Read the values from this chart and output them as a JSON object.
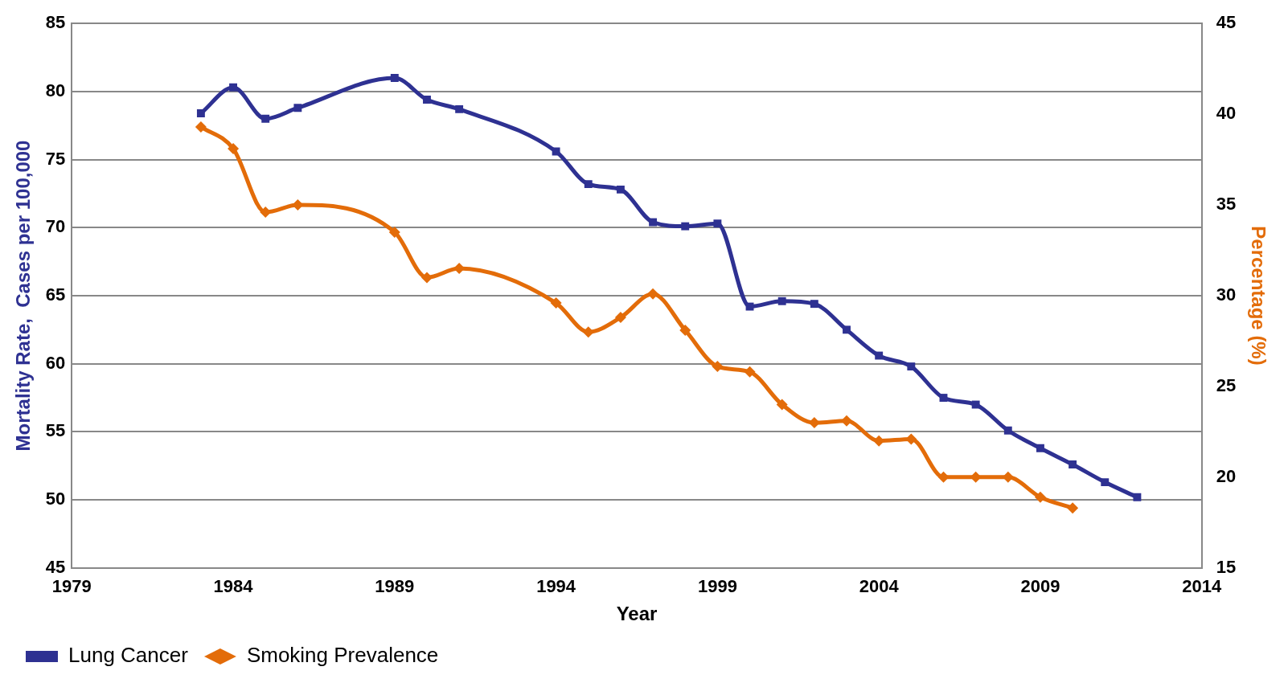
{
  "chart_data": {
    "type": "line",
    "xlabel": "Year",
    "ylabel": "Mortality Rate,  Cases per 100,000",
    "y2label": "Percentage (%)",
    "xlim": [
      1979,
      2014
    ],
    "xticks": [
      1979,
      1984,
      1989,
      1994,
      1999,
      2004,
      2009,
      2014
    ],
    "ylim": [
      45,
      85
    ],
    "yticks": [
      45,
      50,
      55,
      60,
      65,
      70,
      75,
      80,
      85
    ],
    "y2lim": [
      15,
      45
    ],
    "y2ticks": [
      15,
      20,
      25,
      30,
      35,
      40,
      45
    ],
    "grid": "y",
    "legend": "bottom left",
    "series": [
      {
        "name": "Lung Cancer",
        "color": "#2e3192",
        "marker": "square",
        "x": [
          1983,
          1984,
          1985,
          1986,
          1989,
          1990,
          1991,
          1994,
          1995,
          1996,
          1997,
          1998,
          1999,
          2000,
          2001,
          2002,
          2003,
          2004,
          2005,
          2006,
          2007,
          2008,
          2009,
          2010,
          2011,
          2012
        ],
        "values": [
          78.4,
          80.3,
          78.0,
          78.8,
          81.0,
          79.4,
          78.7,
          75.6,
          73.2,
          72.8,
          70.4,
          70.1,
          70.3,
          64.2,
          64.6,
          64.4,
          62.5,
          60.6,
          59.8,
          57.5,
          57.0,
          55.1,
          53.8,
          52.6,
          51.3,
          50.2
        ]
      },
      {
        "name": "Smoking Prevalence",
        "color": "#e36c09",
        "marker": "diamond",
        "axis": "y2",
        "x": [
          1983,
          1984,
          1985,
          1986,
          1989,
          1990,
          1991,
          1994,
          1995,
          1996,
          1997,
          1998,
          1999,
          2000,
          2001,
          2002,
          2003,
          2004,
          2005,
          2006,
          2007,
          2008,
          2009,
          2010
        ],
        "values": [
          39.3,
          38.1,
          34.6,
          35.0,
          33.5,
          31.0,
          31.5,
          29.6,
          28.0,
          28.8,
          30.1,
          28.1,
          26.1,
          25.8,
          24.0,
          23.0,
          23.1,
          22.0,
          22.1,
          20.0,
          20.0,
          20.0,
          18.9,
          18.3
        ]
      }
    ]
  }
}
